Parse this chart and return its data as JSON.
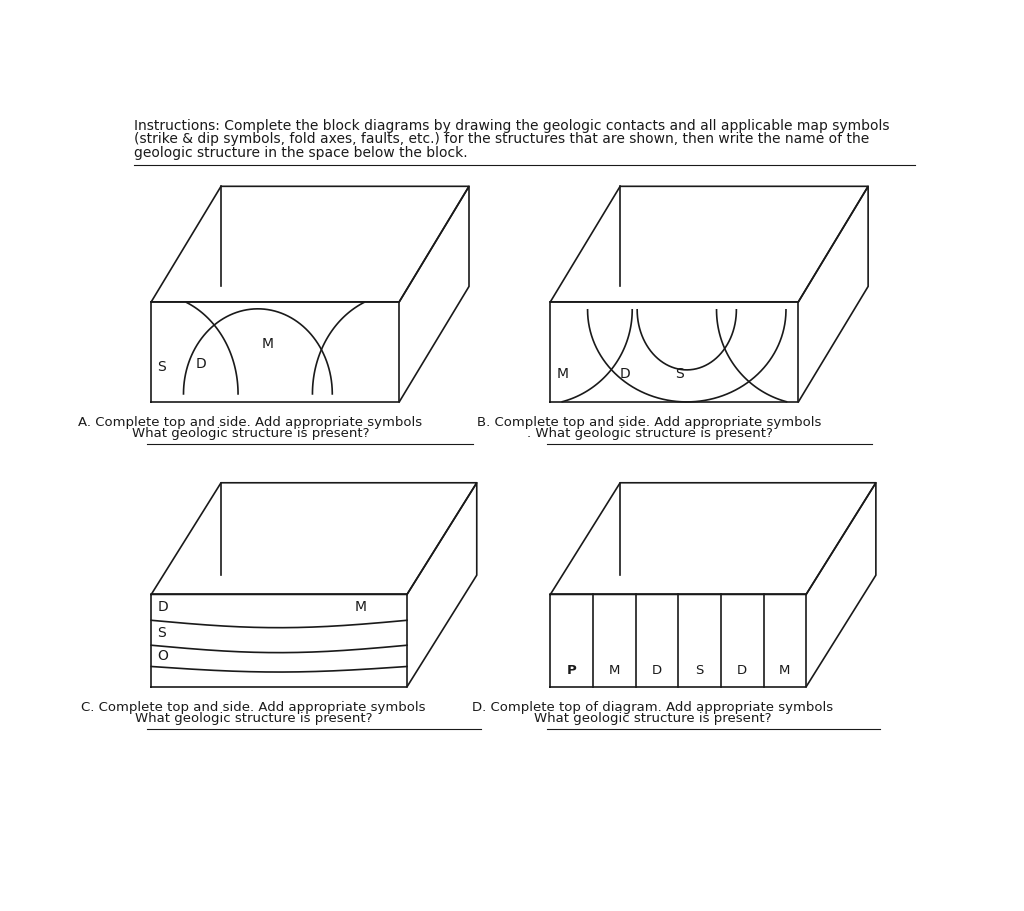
{
  "line_color": "#1a1a1a",
  "text_color": "#1a1a1a",
  "bg_color": "#ffffff",
  "instruction_text_line1": "Instructions: Complete the block diagrams by drawing the geologic contacts and all applicable map symbols",
  "instruction_text_line2": "(strike & dip symbols, fold axes, faults, etc.) for the structures that are shown, then write the name of the",
  "instruction_text_line3": "geologic structure in the space below the block.",
  "caption_A_line1": "A. Complete top and side. Add appropriate symbols",
  "caption_A_line2": "What geologic structure is present?",
  "caption_B_line1": "B. Complete top and side. Add appropriate symbols",
  "caption_B_line2": ". What geologic structure is present?",
  "caption_C_line1": "C. Complete top and side. Add appropriate symbols",
  "caption_C_line2": "What geologic structure is present?",
  "caption_D_line1": "D. Complete top of diagram. Add appropriate symbols",
  "caption_D_line2": "What geologic structure is present?"
}
